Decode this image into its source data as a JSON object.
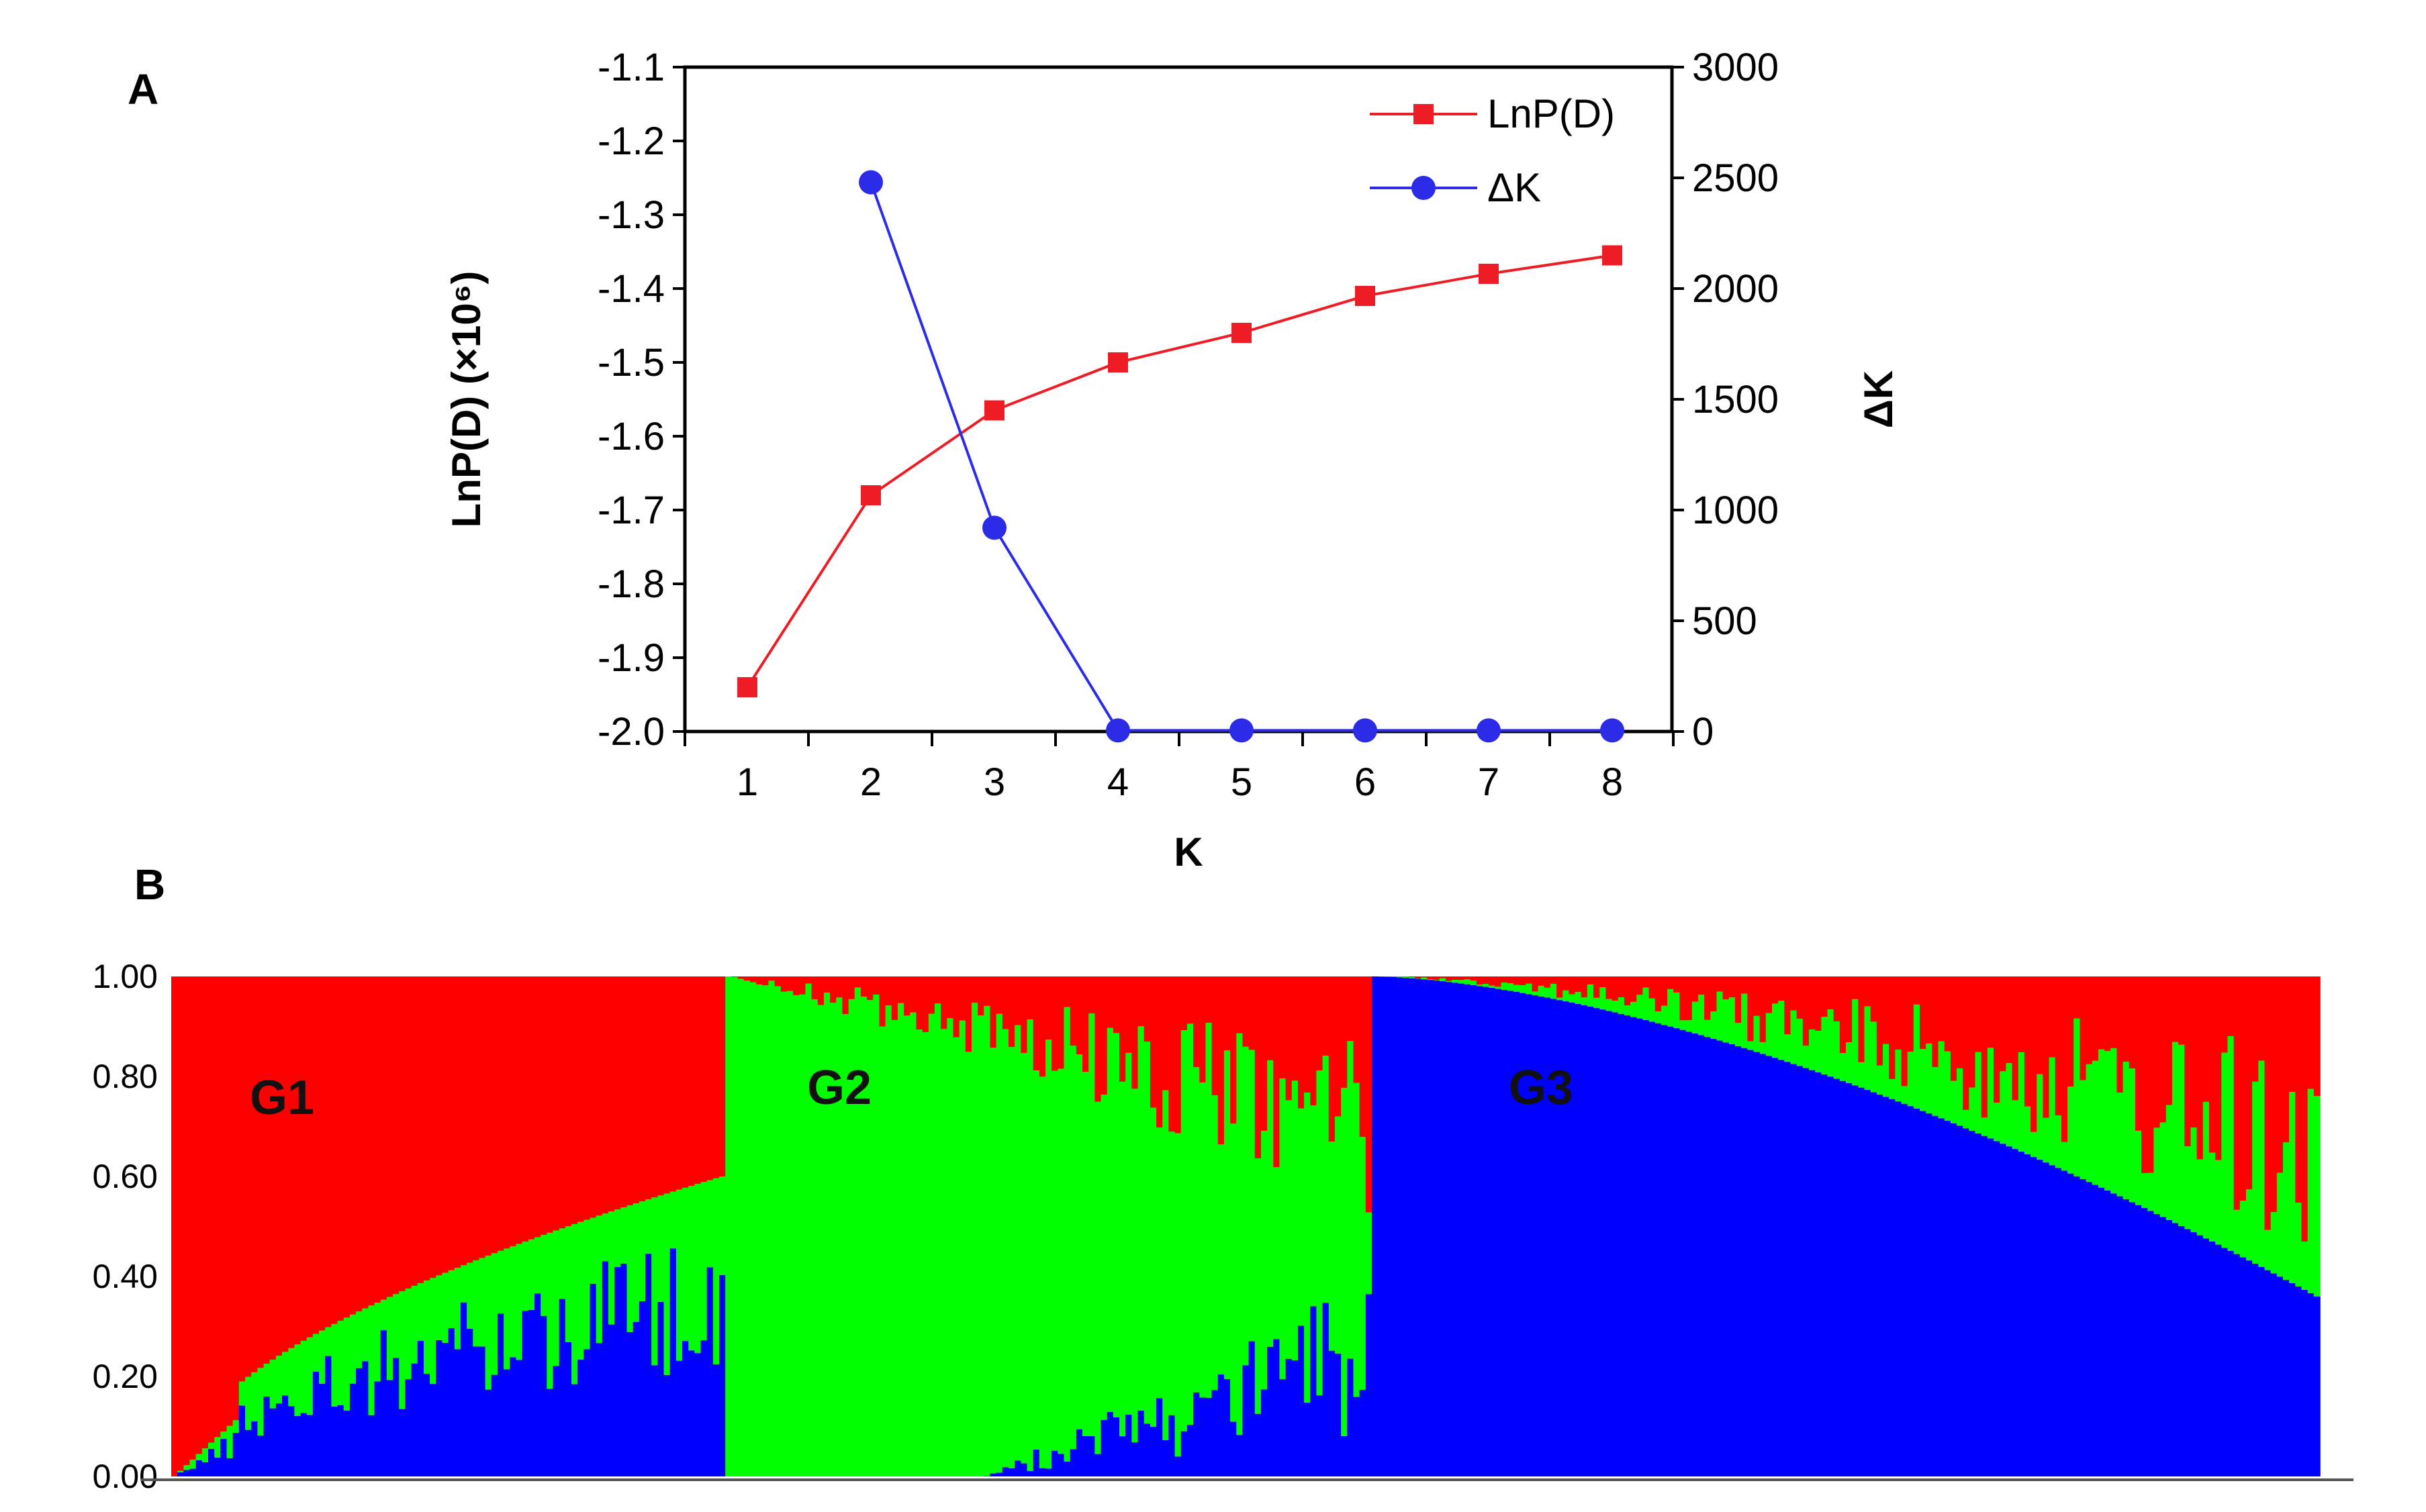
{
  "panels": {
    "a": {
      "letter": "A"
    },
    "b": {
      "letter": "B"
    }
  },
  "chart_data": [
    {
      "type": "line",
      "panel": "A",
      "x": [
        1,
        2,
        3,
        4,
        5,
        6,
        7,
        8
      ],
      "xlabel": "K",
      "ylabel_left": "LnP(D) (×10⁶)",
      "ylabel_right": "ΔK",
      "ylim_left": [
        -2.0,
        -1.1
      ],
      "yticks_left": [
        "-1.1",
        "-1.2",
        "-1.3",
        "-1.4",
        "-1.5",
        "-1.6",
        "-1.7",
        "-1.8",
        "-1.9",
        "-2.0"
      ],
      "ylim_right": [
        0,
        3000
      ],
      "yticks_right": [
        "3000",
        "2500",
        "2000",
        "1500",
        "1000",
        "500",
        "0"
      ],
      "xticks": [
        "1",
        "2",
        "3",
        "4",
        "5",
        "6",
        "7",
        "8"
      ],
      "grid": false,
      "legend_position": "top-right",
      "series": [
        {
          "name": "LnP(D)",
          "axis": "left",
          "color": "#ee1c25",
          "marker": "square",
          "x": [
            1,
            2,
            3,
            4,
            5,
            6,
            7,
            8
          ],
          "values": [
            -1.94,
            -1.68,
            -1.565,
            -1.5,
            -1.46,
            -1.41,
            -1.38,
            -1.355
          ]
        },
        {
          "name": "ΔK",
          "axis": "right",
          "color": "#2b2be8",
          "marker": "circle",
          "x": [
            2,
            3,
            4,
            5,
            6,
            7,
            8
          ],
          "values": [
            2480,
            920,
            5,
            5,
            5,
            5,
            5
          ]
        }
      ]
    },
    {
      "type": "area",
      "subtype": "stacked-admixture-bar",
      "panel": "B",
      "ylim": [
        0,
        1
      ],
      "yticks": [
        "1.00",
        "0.80",
        "0.60",
        "0.40",
        "0.20",
        "0.00"
      ],
      "clusters": [
        {
          "label": "G1",
          "color": "#ff0000"
        },
        {
          "label": "G2",
          "color": "#00ff00"
        },
        {
          "label": "G3",
          "color": "#0000ff"
        }
      ],
      "groups": [
        {
          "label": "G1",
          "dominant": "red",
          "individuals": 90,
          "red_start": 1.0,
          "red_end": 0.4,
          "blue_share_of_rest": 0.6
        },
        {
          "label": "G2",
          "dominant": "green",
          "individuals": 105,
          "red_start": 0.0,
          "red_end": 0.3,
          "blue_start": 0.0,
          "blue_end": 0.25
        },
        {
          "label": "G3",
          "dominant": "blue",
          "individuals": 154,
          "blue_start": 1.0,
          "blue_end": 0.36,
          "red_share_of_rest": 0.55
        }
      ]
    }
  ]
}
